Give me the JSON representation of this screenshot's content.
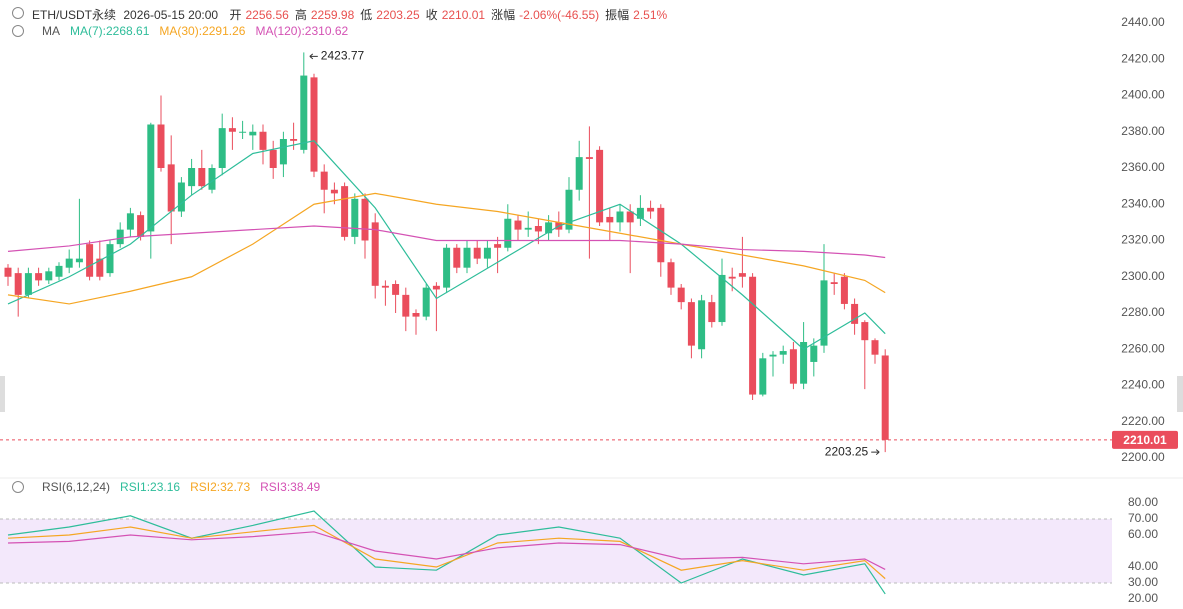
{
  "header": {
    "symbol": "ETH/USDT永续",
    "time": "2026-05-15 20:00",
    "fields": [
      {
        "label": "开",
        "value": "2256.56"
      },
      {
        "label": "高",
        "value": "2259.98"
      },
      {
        "label": "低",
        "value": "2203.25"
      },
      {
        "label": "收",
        "value": "2210.01"
      },
      {
        "label": "涨幅",
        "value": "-2.06%(-46.55)"
      },
      {
        "label": "振幅",
        "value": "2.51%"
      }
    ]
  },
  "chart_data": [
    {
      "type": "candlestick",
      "legend_title": "MA",
      "up_color": "#2ebd85",
      "down_color": "#ea4d5c",
      "open": [
        2305,
        2302,
        2290,
        2302,
        2298,
        2300,
        2305,
        2308,
        2318,
        2310,
        2302,
        2318,
        2326,
        2334,
        2325,
        2384,
        2362,
        2336,
        2350,
        2360,
        2348,
        2360,
        2382,
        2380,
        2378,
        2380,
        2370,
        2362,
        2376,
        2370,
        2410,
        2358,
        2348,
        2350,
        2322,
        2343,
        2330,
        2295,
        2296,
        2290,
        2280,
        2278,
        2295,
        2294,
        2316,
        2305,
        2316,
        2310,
        2318,
        2316,
        2331,
        2326,
        2328,
        2324,
        2330,
        2326,
        2348,
        2366,
        2370,
        2333,
        2330,
        2336,
        2332,
        2338,
        2338,
        2308,
        2294,
        2286,
        2260,
        2286,
        2275,
        2300,
        2302,
        2300,
        2235,
        2256,
        2257,
        2260,
        2241,
        2253,
        2262,
        2297,
        2300,
        2285,
        2275,
        2265,
        2256.56
      ],
      "high": [
        2307,
        2305,
        2305,
        2305,
        2305,
        2308,
        2315,
        2343,
        2320,
        2320,
        2320,
        2330,
        2338,
        2336,
        2385,
        2400,
        2378,
        2355,
        2365,
        2370,
        2362,
        2390,
        2388,
        2386,
        2384,
        2384,
        2375,
        2380,
        2385,
        2423.77,
        2412,
        2362,
        2352,
        2352,
        2346,
        2346,
        2335,
        2298,
        2298,
        2294,
        2282,
        2296,
        2297,
        2318,
        2318,
        2320,
        2320,
        2320,
        2322,
        2340,
        2334,
        2336,
        2332,
        2334,
        2336,
        2355,
        2375,
        2383,
        2372,
        2338,
        2340,
        2340,
        2345,
        2342,
        2340,
        2310,
        2296,
        2288,
        2290,
        2290,
        2310,
        2305,
        2322,
        2302,
        2258,
        2259,
        2262,
        2264,
        2275,
        2266,
        2318,
        2302,
        2302,
        2288,
        2276,
        2266,
        2259.98
      ],
      "low": [
        2295,
        2278,
        2288,
        2295,
        2296,
        2298,
        2302,
        2305,
        2298,
        2298,
        2300,
        2316,
        2322,
        2320,
        2310,
        2358,
        2318,
        2333,
        2345,
        2348,
        2346,
        2356,
        2370,
        2376,
        2370,
        2362,
        2354,
        2355,
        2370,
        2368,
        2355,
        2335,
        2340,
        2320,
        2318,
        2310,
        2288,
        2284,
        2280,
        2270,
        2268,
        2276,
        2270,
        2291,
        2302,
        2302,
        2307,
        2305,
        2302,
        2314,
        2320,
        2322,
        2318,
        2320,
        2322,
        2324,
        2342,
        2310,
        2328,
        2320,
        2325,
        2302,
        2328,
        2332,
        2300,
        2290,
        2282,
        2255,
        2255,
        2272,
        2273,
        2292,
        2294,
        2232,
        2234,
        2245,
        2252,
        2238,
        2238,
        2245,
        2258,
        2290,
        2282,
        2268,
        2238,
        2252,
        2203.25
      ],
      "close": [
        2300,
        2290,
        2302,
        2298,
        2303,
        2306,
        2310,
        2310,
        2300,
        2300,
        2318,
        2326,
        2335,
        2322,
        2384,
        2360,
        2336,
        2352,
        2360,
        2350,
        2360,
        2382,
        2380,
        2380,
        2380,
        2370,
        2360,
        2376,
        2375,
        2411,
        2358,
        2348,
        2346,
        2322,
        2343,
        2320,
        2295,
        2294,
        2290,
        2278,
        2278,
        2294,
        2293,
        2316,
        2305,
        2316,
        2310,
        2316,
        2316,
        2332,
        2326,
        2327,
        2325,
        2330,
        2326,
        2348,
        2366,
        2365,
        2330,
        2330,
        2336,
        2330,
        2338,
        2336,
        2308,
        2294,
        2286,
        2262,
        2287,
        2275,
        2301,
        2299,
        2300,
        2235,
        2255,
        2257,
        2259,
        2241,
        2264,
        2262,
        2298,
        2296,
        2285,
        2274,
        2265,
        2257,
        2210.01
      ],
      "series": [
        {
          "name": "MA(7):2268.61",
          "color": "#2ebd9a",
          "x": [
            0,
            6,
            12,
            18,
            24,
            30,
            36,
            42,
            48,
            54,
            60,
            66,
            72,
            78,
            84,
            86
          ],
          "values": [
            2285,
            2300,
            2318,
            2345,
            2368,
            2375,
            2338,
            2288,
            2308,
            2328,
            2340,
            2318,
            2290,
            2260,
            2280,
            2268.61
          ]
        },
        {
          "name": "MA(30):2291.26",
          "color": "#f5a623",
          "x": [
            0,
            6,
            12,
            18,
            24,
            30,
            36,
            42,
            48,
            54,
            60,
            66,
            72,
            78,
            84,
            86
          ],
          "values": [
            2290,
            2285,
            2292,
            2300,
            2318,
            2340,
            2346,
            2340,
            2336,
            2330,
            2324,
            2318,
            2312,
            2306,
            2298,
            2291.26
          ]
        },
        {
          "name": "MA(120):2310.62",
          "color": "#d452b4",
          "x": [
            0,
            6,
            12,
            18,
            24,
            30,
            36,
            42,
            48,
            54,
            60,
            66,
            72,
            78,
            84,
            86
          ],
          "values": [
            2314,
            2317,
            2322,
            2324,
            2326,
            2328,
            2326,
            2320,
            2320,
            2320,
            2320,
            2318,
            2315,
            2314,
            2312,
            2310.62
          ]
        }
      ],
      "ylim": [
        2200,
        2440
      ],
      "yticks": [
        {
          "value": 2200,
          "label": "2200.00"
        },
        {
          "value": 2220,
          "label": "2220.00"
        },
        {
          "value": 2240,
          "label": "2240.00"
        },
        {
          "value": 2260,
          "label": "2260.00"
        },
        {
          "value": 2280,
          "label": "2280.00"
        },
        {
          "value": 2300,
          "label": "2300.00"
        },
        {
          "value": 2320,
          "label": "2320.00"
        },
        {
          "value": 2340,
          "label": "2340.00"
        },
        {
          "value": 2360,
          "label": "2360.00"
        },
        {
          "value": 2380,
          "label": "2380.00"
        },
        {
          "value": 2400,
          "label": "2400.00"
        },
        {
          "value": 2420,
          "label": "2420.00"
        },
        {
          "value": 2440,
          "label": "2440.00"
        }
      ],
      "annotations": {
        "high_label": "2423.77",
        "low_label": "2203.25",
        "last_price": 2210.01,
        "last_price_label": "2210.01"
      }
    },
    {
      "type": "line",
      "legend_title": "RSI(6,12,24)",
      "series": [
        {
          "name": "RSI1:23.16",
          "color": "#2ebd9a",
          "x": [
            0,
            6,
            12,
            18,
            24,
            30,
            36,
            42,
            48,
            54,
            60,
            66,
            72,
            78,
            84,
            86
          ],
          "values": [
            60,
            65,
            72,
            58,
            66,
            75,
            40,
            38,
            60,
            65,
            58,
            30,
            45,
            35,
            42,
            23.16
          ]
        },
        {
          "name": "RSI2:32.73",
          "color": "#f5a623",
          "x": [
            0,
            6,
            12,
            18,
            24,
            30,
            36,
            42,
            48,
            54,
            60,
            66,
            72,
            78,
            84,
            86
          ],
          "values": [
            58,
            60,
            65,
            58,
            62,
            66,
            45,
            40,
            55,
            58,
            56,
            38,
            44,
            38,
            44,
            32.73
          ]
        },
        {
          "name": "RSI3:38.49",
          "color": "#d452b4",
          "x": [
            0,
            6,
            12,
            18,
            24,
            30,
            36,
            42,
            48,
            54,
            60,
            66,
            72,
            78,
            84,
            86
          ],
          "values": [
            55,
            56,
            60,
            57,
            59,
            62,
            50,
            45,
            52,
            55,
            54,
            45,
            46,
            42,
            45,
            38.49
          ]
        }
      ],
      "band": [
        30,
        70
      ],
      "band_color": "#f3e8fb",
      "ylim": [
        20,
        80
      ],
      "yticks": [
        {
          "value": 20,
          "label": "20.00"
        },
        {
          "value": 30,
          "label": "30.00"
        },
        {
          "value": 40,
          "label": "40.00"
        },
        {
          "value": 60,
          "label": "60.00"
        },
        {
          "value": 70,
          "label": "70.00"
        },
        {
          "value": 80,
          "label": "80.00"
        }
      ]
    }
  ]
}
